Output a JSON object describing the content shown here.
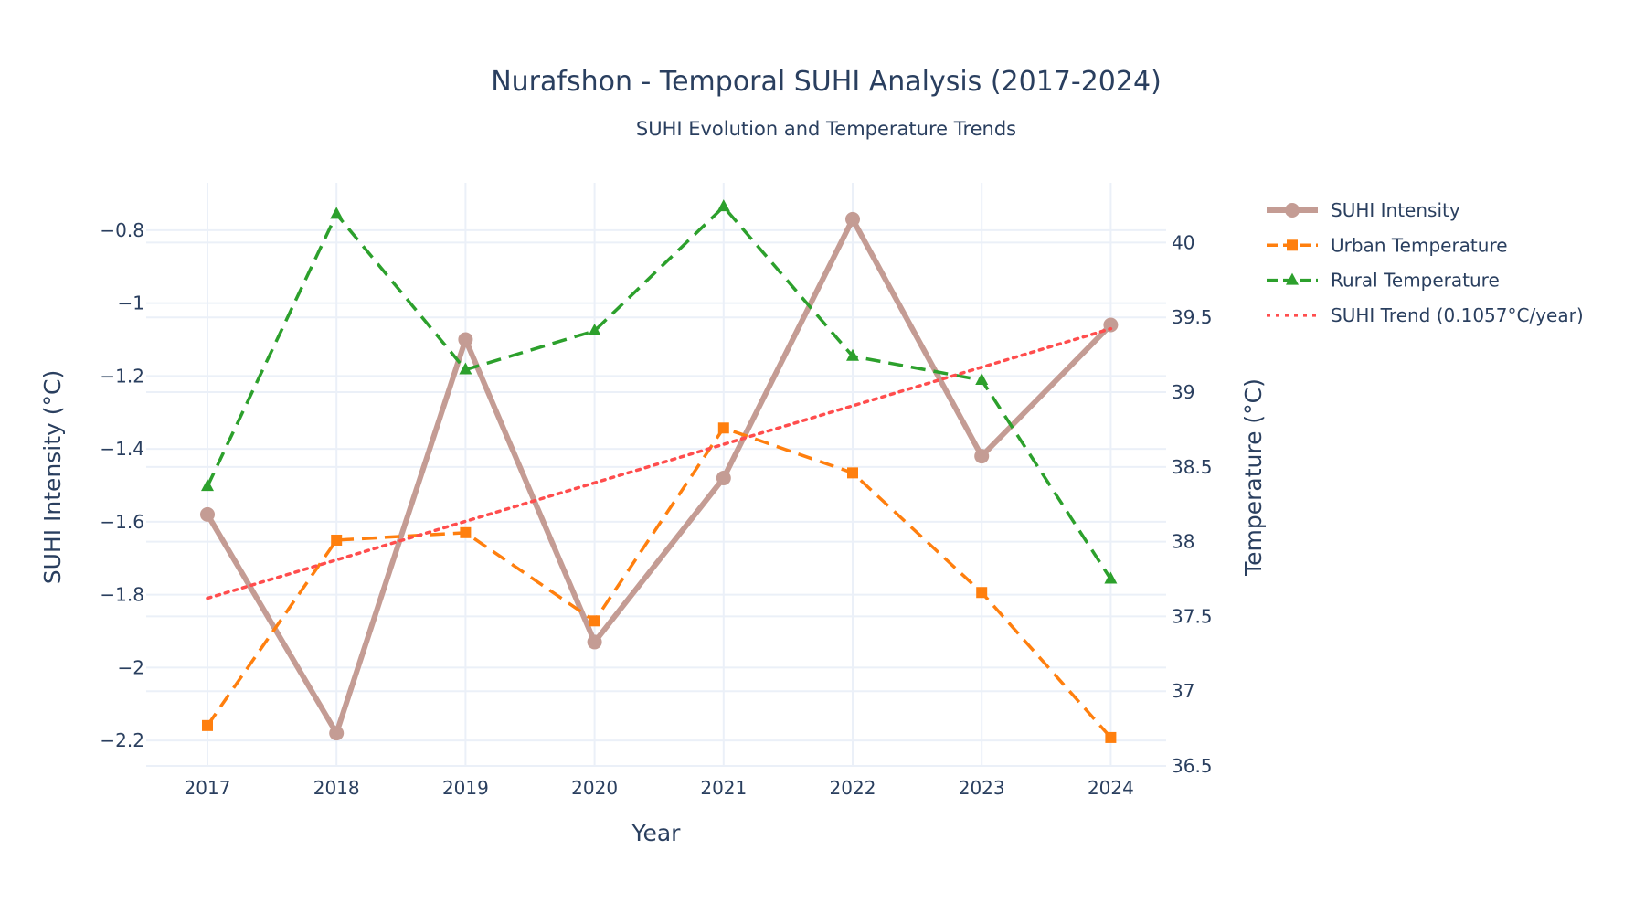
{
  "chart_data": {
    "type": "line",
    "title": "Nurafshon - Temporal SUHI Analysis (2017-2024)",
    "subtitle": "SUHI Evolution and Temperature Trends",
    "xlabel": "Year",
    "ylabel": "SUHI Intensity (°C)",
    "y2label": "Temperature (°C)",
    "categories": [
      "2017",
      "2018",
      "2019",
      "2020",
      "2021",
      "2022",
      "2023",
      "2024"
    ],
    "ylim": [
      -2.27,
      -0.67
    ],
    "y2lim": [
      36.5,
      40.4
    ],
    "yticks": [
      -2.2,
      -2,
      -1.8,
      -1.6,
      -1.4,
      -1.2,
      -1,
      -0.8
    ],
    "ytick_labels": [
      "−2.2",
      "−2",
      "−1.8",
      "−1.6",
      "−1.4",
      "−1.2",
      "−1",
      "−0.8"
    ],
    "y2ticks": [
      36.5,
      37,
      37.5,
      38,
      38.5,
      39,
      39.5,
      40
    ],
    "y2tick_labels": [
      "36.5",
      "37",
      "37.5",
      "38",
      "38.5",
      "39",
      "39.5",
      "40"
    ],
    "grid": true,
    "legend_position": "top-right",
    "series": [
      {
        "name": "SUHI Intensity",
        "axis": "y",
        "color": "#c49c94",
        "dash": "solid",
        "marker": "circle",
        "values": [
          -1.58,
          -2.18,
          -1.1,
          -1.93,
          -1.48,
          -0.77,
          -1.42,
          -1.06
        ]
      },
      {
        "name": "Urban Temperature",
        "axis": "y2",
        "color": "#ff7f0e",
        "dash": "dash",
        "marker": "square",
        "values": [
          36.77,
          38.01,
          38.06,
          37.47,
          38.76,
          38.46,
          37.66,
          36.69
        ]
      },
      {
        "name": "Rural Temperature",
        "axis": "y2",
        "color": "#2ca02c",
        "dash": "dash",
        "marker": "triangle-up",
        "values": [
          38.37,
          40.19,
          39.15,
          39.41,
          40.24,
          39.24,
          39.08,
          37.75
        ]
      },
      {
        "name": "SUHI Trend (0.1057°C/year)",
        "axis": "y",
        "color": "#ff4d4d",
        "dash": "dot",
        "marker": "none",
        "values": [
          -1.81,
          -1.7046,
          -1.5989,
          -1.4932,
          -1.3875,
          -1.2818,
          -1.1761,
          -1.0704
        ]
      }
    ]
  }
}
